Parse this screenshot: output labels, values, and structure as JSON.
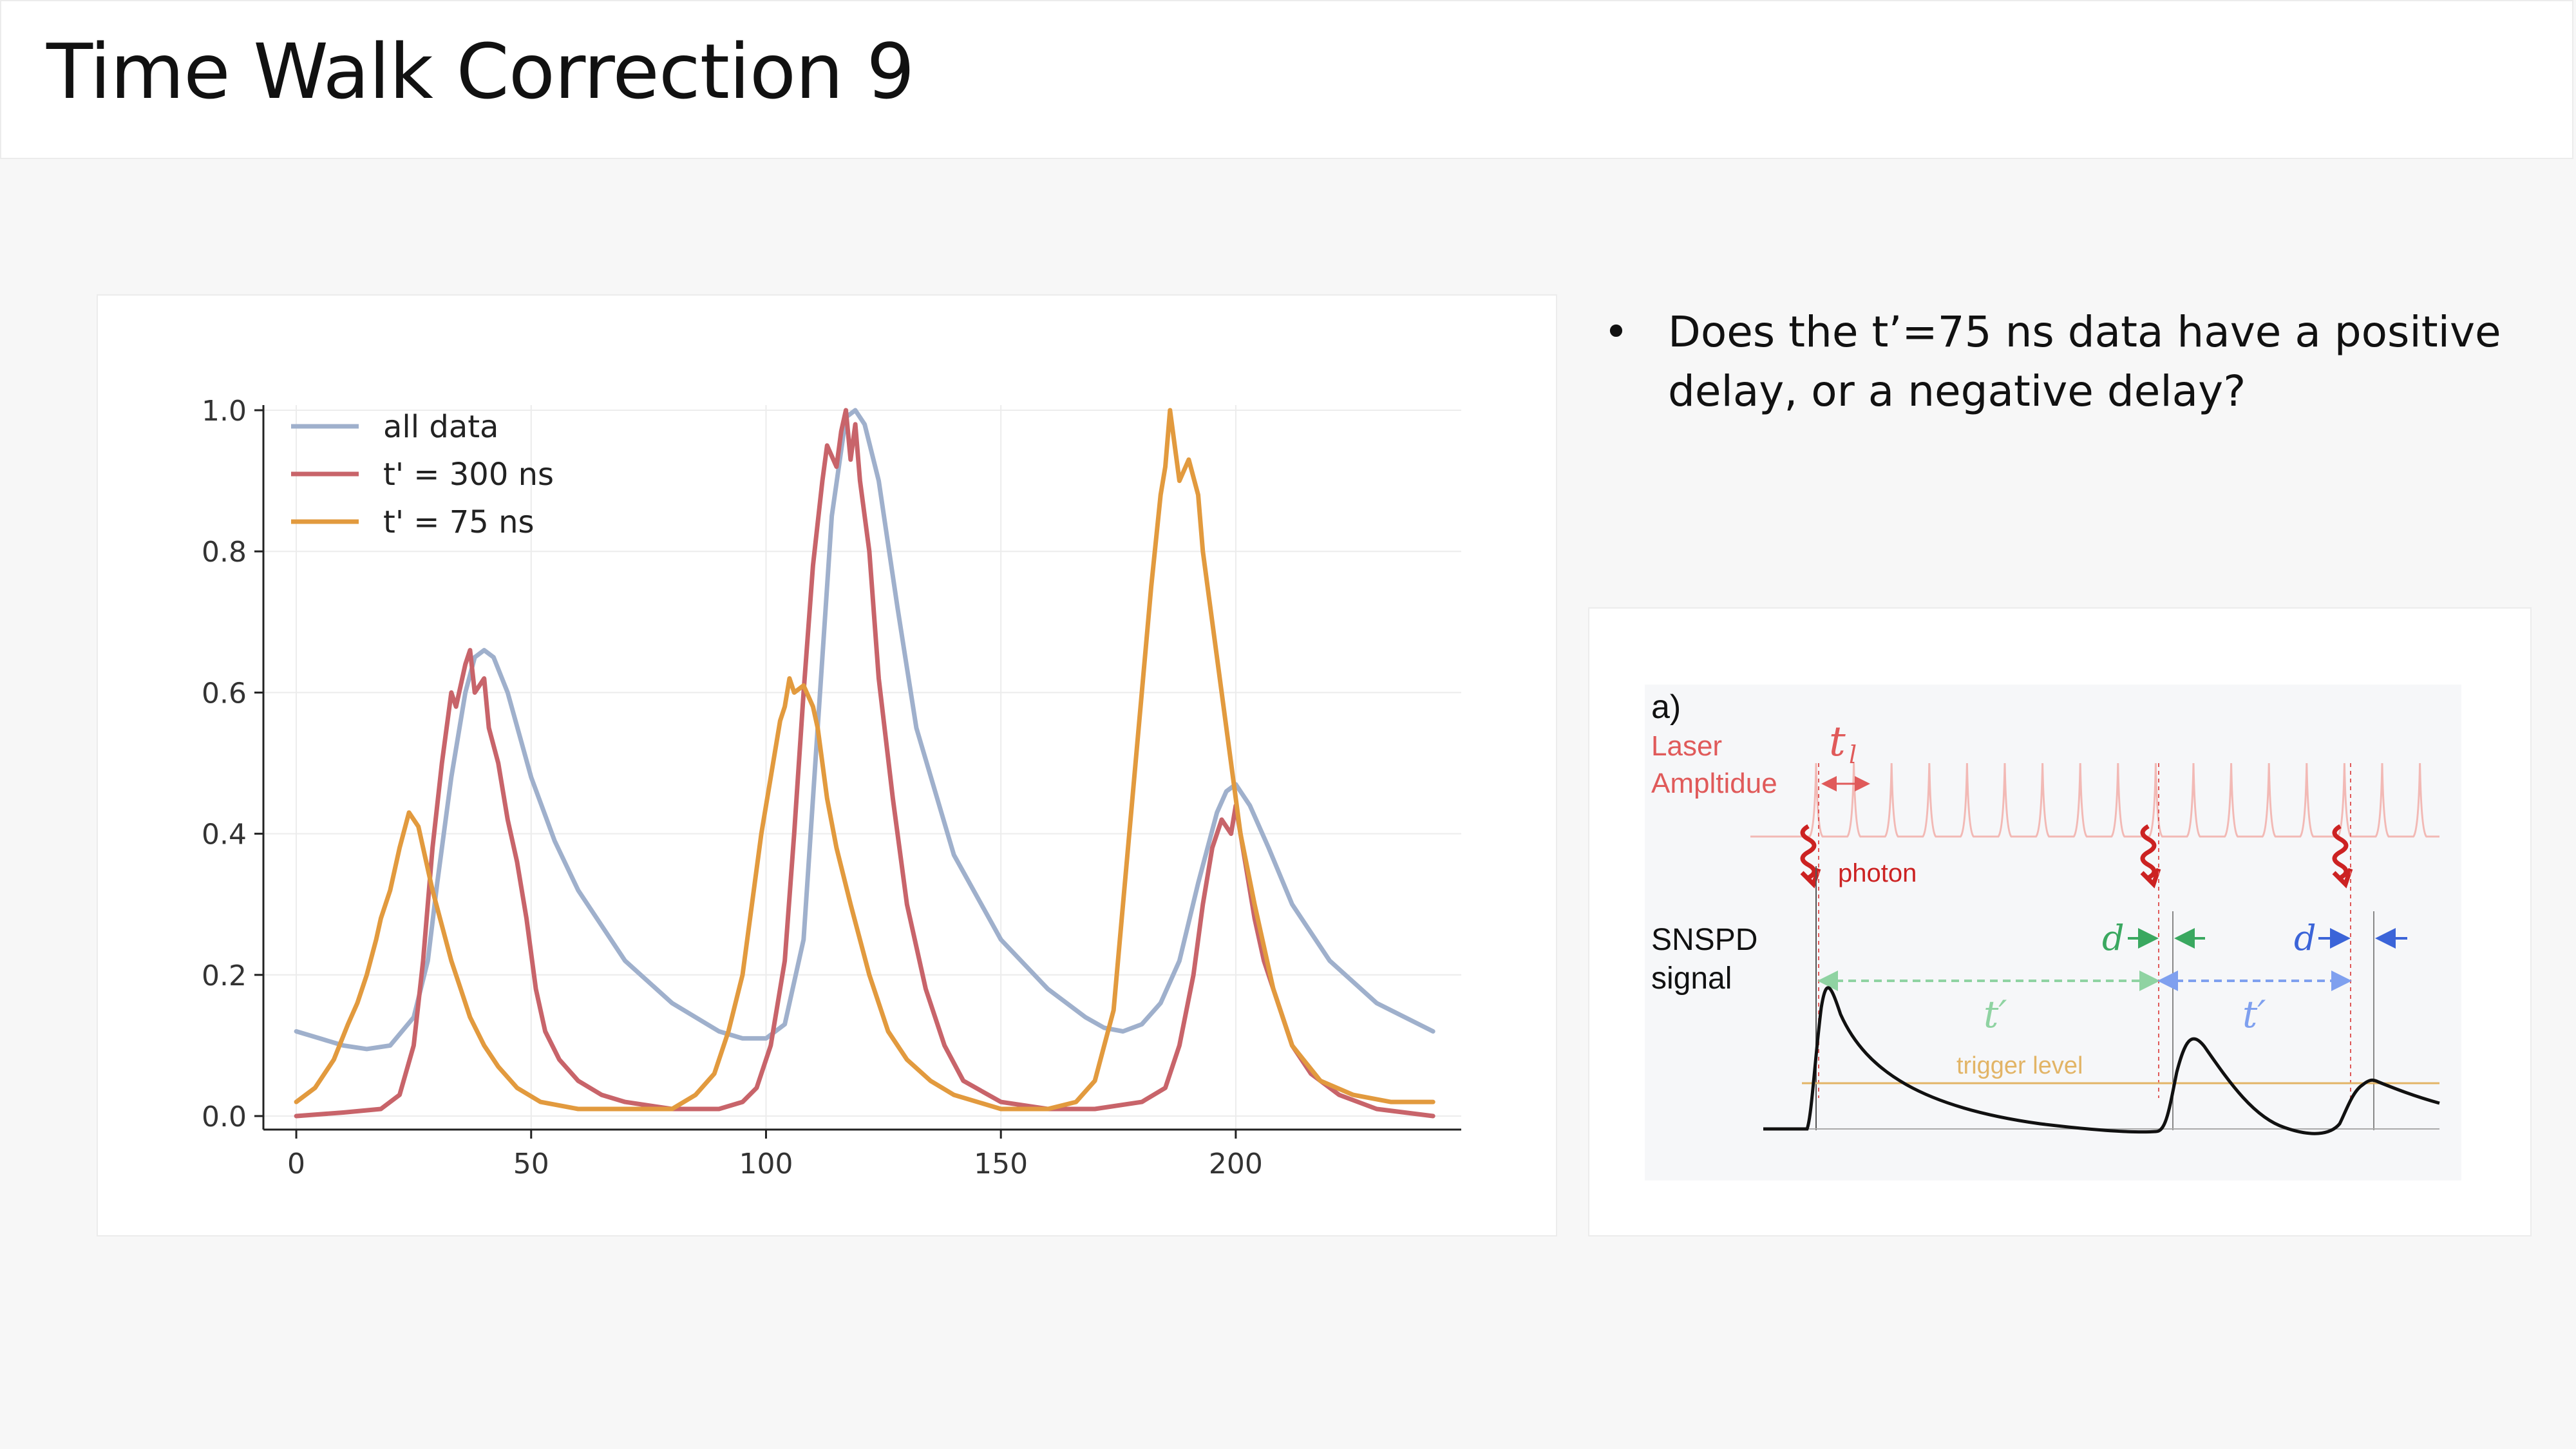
{
  "slide": {
    "title": "Time Walk Correction 9",
    "bullets": [
      {
        "marker": "•",
        "text": "Does the t’=75 ns data have a positive delay, or a negative delay?"
      }
    ]
  },
  "chart_data": {
    "type": "line",
    "title": "",
    "xlabel": "",
    "ylabel": "",
    "xlim": [
      -7,
      248
    ],
    "ylim": [
      0,
      1.0
    ],
    "xticks": [
      0,
      50,
      100,
      150,
      200
    ],
    "yticks": [
      0.0,
      0.2,
      0.4,
      0.6,
      0.8,
      1.0
    ],
    "grid": true,
    "legend_position": "top-left",
    "series": [
      {
        "name": "all data",
        "color": "#9fb0cc",
        "x": [
          0,
          5,
          10,
          15,
          20,
          25,
          28,
          30,
          33,
          36,
          38,
          40,
          42,
          45,
          50,
          55,
          60,
          70,
          80,
          90,
          95,
          100,
          104,
          108,
          111,
          114,
          117,
          119,
          121,
          124,
          128,
          132,
          140,
          150,
          160,
          168,
          172,
          176,
          180,
          184,
          188,
          192,
          196,
          198,
          200,
          203,
          207,
          212,
          220,
          230,
          242
        ],
        "y": [
          0.12,
          0.11,
          0.1,
          0.095,
          0.1,
          0.14,
          0.22,
          0.33,
          0.48,
          0.6,
          0.65,
          0.66,
          0.65,
          0.6,
          0.48,
          0.39,
          0.32,
          0.22,
          0.16,
          0.12,
          0.11,
          0.11,
          0.13,
          0.25,
          0.55,
          0.85,
          0.99,
          1.0,
          0.98,
          0.9,
          0.72,
          0.55,
          0.37,
          0.25,
          0.18,
          0.14,
          0.125,
          0.12,
          0.13,
          0.16,
          0.22,
          0.33,
          0.43,
          0.46,
          0.47,
          0.44,
          0.38,
          0.3,
          0.22,
          0.16,
          0.12
        ]
      },
      {
        "name": "t' = 300 ns",
        "color": "#c8646a",
        "x": [
          0,
          10,
          18,
          22,
          25,
          27,
          29,
          31,
          33,
          34,
          36,
          37,
          38,
          40,
          41,
          43,
          45,
          47,
          49,
          51,
          53,
          56,
          60,
          65,
          70,
          80,
          90,
          95,
          98,
          101,
          104,
          106,
          108,
          110,
          112,
          113,
          115,
          116,
          117,
          118,
          119,
          120,
          122,
          124,
          127,
          130,
          134,
          138,
          142,
          150,
          160,
          170,
          180,
          185,
          188,
          191,
          193,
          195,
          197,
          199,
          200,
          202,
          204,
          206,
          209,
          212,
          216,
          222,
          230,
          242
        ],
        "y": [
          0.0,
          0.005,
          0.01,
          0.03,
          0.1,
          0.22,
          0.38,
          0.5,
          0.6,
          0.58,
          0.64,
          0.66,
          0.6,
          0.62,
          0.55,
          0.5,
          0.42,
          0.36,
          0.28,
          0.18,
          0.12,
          0.08,
          0.05,
          0.03,
          0.02,
          0.01,
          0.01,
          0.02,
          0.04,
          0.1,
          0.22,
          0.4,
          0.6,
          0.78,
          0.9,
          0.95,
          0.92,
          0.97,
          1.0,
          0.93,
          0.98,
          0.9,
          0.8,
          0.62,
          0.45,
          0.3,
          0.18,
          0.1,
          0.05,
          0.02,
          0.01,
          0.01,
          0.02,
          0.04,
          0.1,
          0.2,
          0.3,
          0.38,
          0.42,
          0.4,
          0.44,
          0.36,
          0.28,
          0.22,
          0.16,
          0.1,
          0.06,
          0.03,
          0.01,
          0.0
        ]
      },
      {
        "name": "t' = 75 ns",
        "color": "#e29a3e",
        "x": [
          0,
          4,
          8,
          11,
          13,
          15,
          17,
          18,
          20,
          22,
          24,
          26,
          27,
          29,
          31,
          33,
          35,
          37,
          40,
          43,
          47,
          52,
          60,
          70,
          80,
          85,
          89,
          92,
          95,
          97,
          99,
          101,
          103,
          104,
          105,
          106,
          108,
          110,
          111,
          112,
          113,
          115,
          118,
          122,
          126,
          130,
          135,
          140,
          150,
          160,
          166,
          170,
          174,
          176,
          178,
          180,
          182,
          184,
          185,
          186,
          188,
          190,
          192,
          193,
          195,
          197,
          199,
          201,
          204,
          208,
          212,
          218,
          225,
          233,
          242
        ],
        "y": [
          0.02,
          0.04,
          0.08,
          0.13,
          0.16,
          0.2,
          0.25,
          0.28,
          0.32,
          0.38,
          0.43,
          0.41,
          0.38,
          0.32,
          0.27,
          0.22,
          0.18,
          0.14,
          0.1,
          0.07,
          0.04,
          0.02,
          0.01,
          0.01,
          0.01,
          0.03,
          0.06,
          0.12,
          0.2,
          0.3,
          0.4,
          0.48,
          0.56,
          0.58,
          0.62,
          0.6,
          0.61,
          0.58,
          0.55,
          0.5,
          0.45,
          0.38,
          0.3,
          0.2,
          0.12,
          0.08,
          0.05,
          0.03,
          0.01,
          0.01,
          0.02,
          0.05,
          0.15,
          0.3,
          0.45,
          0.6,
          0.75,
          0.88,
          0.92,
          1.0,
          0.9,
          0.93,
          0.88,
          0.8,
          0.7,
          0.6,
          0.5,
          0.4,
          0.3,
          0.18,
          0.1,
          0.05,
          0.03,
          0.02,
          0.02
        ]
      }
    ]
  },
  "diagram": {
    "panel_label": "a)",
    "laser_label_1": "Laser",
    "laser_label_2": "Ampltidue",
    "tl_label": "t",
    "tl_sub": "l",
    "photon_label": "photon",
    "snspd_label_1": "SNSPD",
    "snspd_label_2": "signal",
    "d_label": "d",
    "tprime_label": "t′",
    "trigger_label": "trigger level",
    "colors": {
      "laser": "#e05a5a",
      "laser_pulse": "#f2b9b5",
      "green": "#3aa860",
      "green_light": "#8fd3a2",
      "blue": "#3b64d8",
      "blue_light": "#7fa0ef",
      "trigger": "#e2b466",
      "photon": "#cc2222"
    }
  }
}
